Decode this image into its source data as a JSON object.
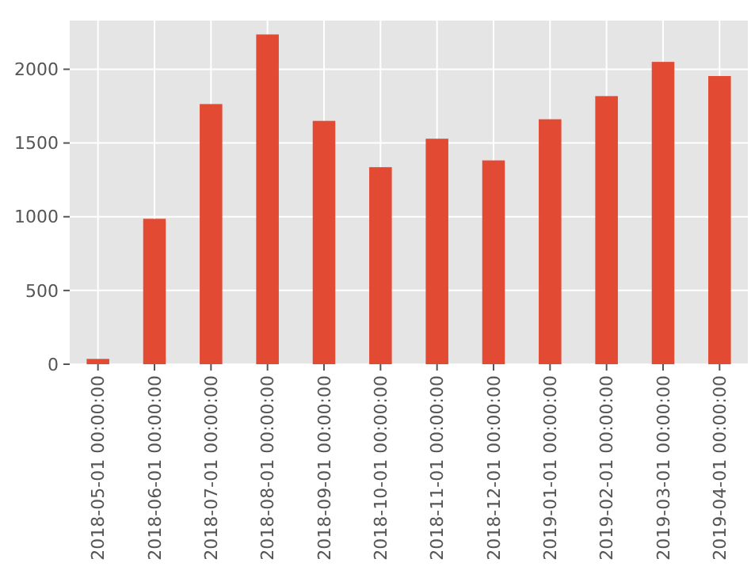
{
  "chart_data": {
    "type": "bar",
    "categories": [
      "2018-05-01 00:00:00",
      "2018-06-01 00:00:00",
      "2018-07-01 00:00:00",
      "2018-08-01 00:00:00",
      "2018-09-01 00:00:00",
      "2018-10-01 00:00:00",
      "2018-11-01 00:00:00",
      "2018-12-01 00:00:00",
      "2019-01-01 00:00:00",
      "2019-02-01 00:00:00",
      "2019-03-01 00:00:00",
      "2019-04-01 00:00:00"
    ],
    "values": [
      36,
      986,
      1764,
      2236,
      1650,
      1336,
      1529,
      1382,
      1661,
      1818,
      2050,
      1954
    ],
    "color": "#e24a33",
    "ylim": [
      0,
      2330
    ],
    "yticks": [
      0,
      500,
      1000,
      1500,
      2000
    ],
    "grid": true
  }
}
